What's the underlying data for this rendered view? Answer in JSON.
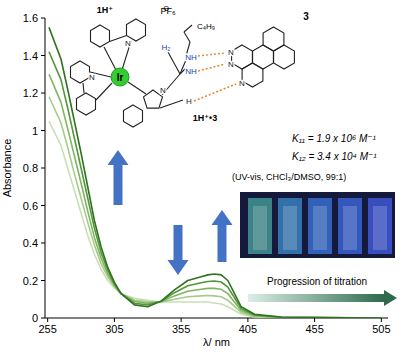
{
  "chart_data": {
    "type": "line",
    "x_label": "λ/ nm",
    "y_label": "Absorbance",
    "x": [
      256,
      265,
      270,
      275,
      280,
      285,
      290,
      295,
      300,
      305,
      310,
      320,
      330,
      340,
      350,
      360,
      370,
      375,
      380,
      385,
      390,
      395,
      400,
      410,
      430,
      505
    ],
    "series": [
      {
        "color": "#c9e0b5",
        "values": [
          1.05,
          0.92,
          0.8,
          0.68,
          0.56,
          0.44,
          0.34,
          0.26,
          0.2,
          0.16,
          0.13,
          0.105,
          0.095,
          0.085,
          0.085,
          0.085,
          0.085,
          0.085,
          0.08,
          0.075,
          0.06,
          0.04,
          0.02,
          0.005,
          0,
          0
        ]
      },
      {
        "color": "#a5cc8a",
        "values": [
          1.18,
          1.04,
          0.91,
          0.77,
          0.64,
          0.51,
          0.39,
          0.29,
          0.22,
          0.168,
          0.13,
          0.096,
          0.086,
          0.086,
          0.1,
          0.113,
          0.118,
          0.12,
          0.118,
          0.113,
          0.095,
          0.062,
          0.03,
          0.008,
          0.001,
          0
        ]
      },
      {
        "color": "#7fb460",
        "values": [
          1.3,
          1.15,
          1.01,
          0.865,
          0.72,
          0.57,
          0.43,
          0.32,
          0.235,
          0.175,
          0.13,
          0.088,
          0.078,
          0.088,
          0.118,
          0.143,
          0.153,
          0.158,
          0.158,
          0.153,
          0.13,
          0.085,
          0.04,
          0.012,
          0.003,
          0
        ]
      },
      {
        "color": "#54963a",
        "values": [
          1.42,
          1.27,
          1.12,
          0.96,
          0.8,
          0.64,
          0.48,
          0.35,
          0.255,
          0.183,
          0.13,
          0.079,
          0.069,
          0.089,
          0.135,
          0.172,
          0.188,
          0.195,
          0.197,
          0.192,
          0.165,
          0.108,
          0.05,
          0.016,
          0.004,
          0
        ]
      },
      {
        "color": "#2e7320",
        "values": [
          1.55,
          1.38,
          1.22,
          1.05,
          0.88,
          0.7,
          0.52,
          0.38,
          0.27,
          0.19,
          0.13,
          0.07,
          0.06,
          0.09,
          0.15,
          0.2,
          0.22,
          0.23,
          0.235,
          0.23,
          0.2,
          0.13,
          0.06,
          0.02,
          0.005,
          0
        ]
      }
    ],
    "xlim": [
      253,
      510
    ],
    "ylim": [
      0,
      1.6
    ],
    "xticks": [
      255,
      305,
      355,
      405,
      455,
      505
    ],
    "yticks": [
      0,
      0.2,
      0.4,
      0.6,
      0.8,
      1,
      1.2,
      1.4,
      1.6
    ],
    "grid": false,
    "annotations": [
      "K₁₁ = 1.9 x 10⁶ M⁻¹",
      "K₁₂ = 3.4 x 10⁴ M⁻¹",
      "(UV-vis, CHCl₃/DMSO, 99:1)",
      "Progression of titration"
    ]
  },
  "structure": {
    "host": "1H⁺",
    "counterion": "PF₆",
    "charge": "⊖",
    "alkyl": "C₄H₉",
    "guest": "3",
    "metal": "Ir",
    "complex": "1H⁺•3",
    "atoms": [
      "H₂",
      "NH",
      "NH",
      "N",
      "H",
      "N",
      "N",
      "N",
      "N",
      "N"
    ]
  }
}
